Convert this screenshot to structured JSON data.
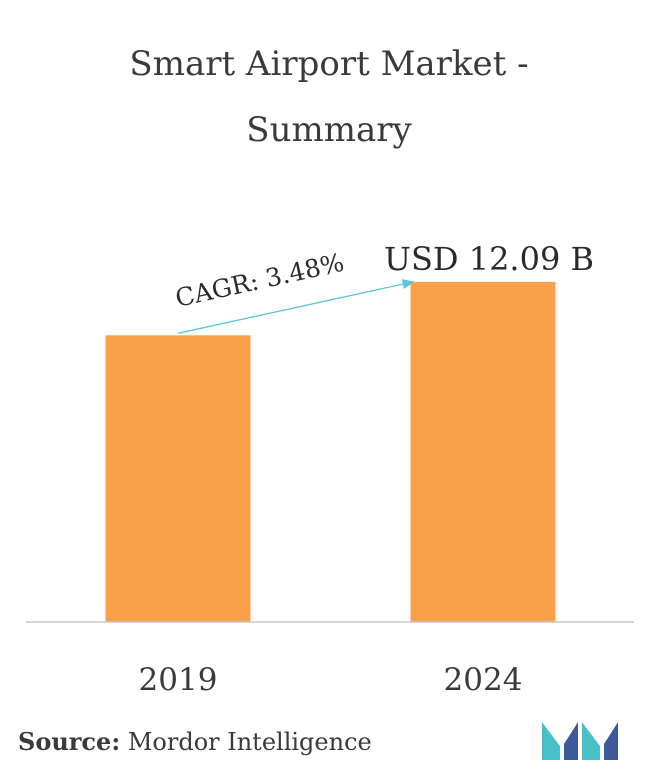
{
  "chart_data": {
    "type": "bar",
    "title": "Smart Airport Market -",
    "subtitle": "Summary",
    "categories": [
      "2019",
      "2024"
    ],
    "values": [
      10.19,
      12.09
    ],
    "data_labels": [
      "",
      "USD 12.09 B"
    ],
    "annotation": "CAGR: 3.48%",
    "ylim": [
      0,
      15
    ],
    "grid": false,
    "bar_color": "#F9A04A",
    "arrow_color": "#5BC6D8"
  },
  "footer": {
    "source_label": "Source:",
    "source_name": "Mordor Intelligence"
  },
  "logo": {
    "colors": [
      "#3C5A99",
      "#47C1C7"
    ]
  }
}
